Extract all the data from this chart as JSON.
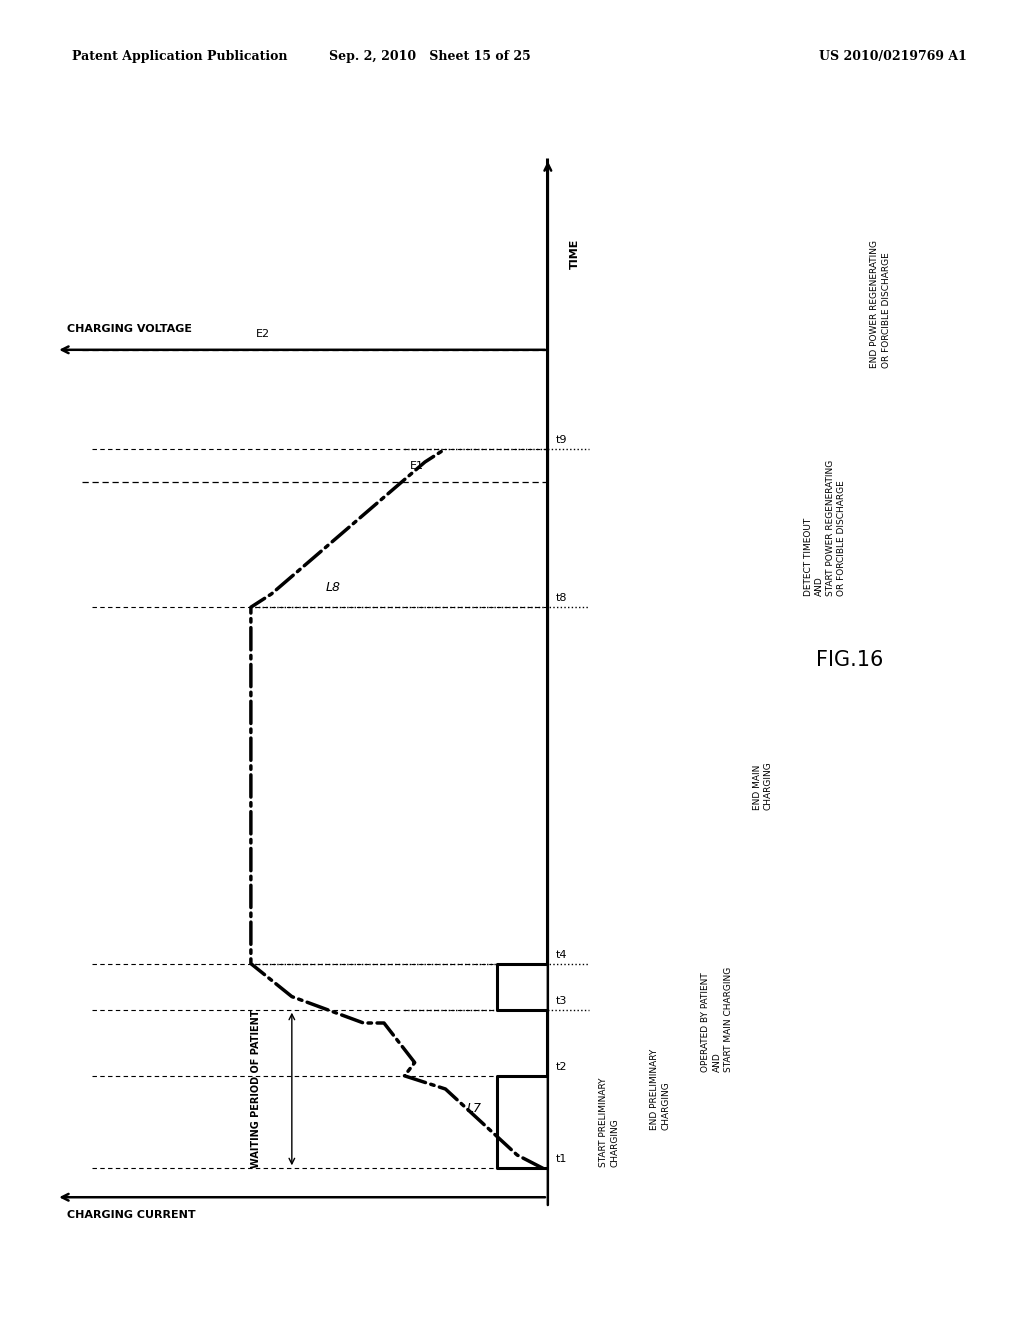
{
  "bg_color": "#ffffff",
  "header_left": "Patent Application Publication",
  "header_mid": "Sep. 2, 2010   Sheet 15 of 25",
  "header_right": "US 2010/0219769 A1",
  "fig_label": "FIG.16",
  "waiting_label": "WAITING PERIOD OF PATIENT",
  "charging_voltage_label": "CHARGING VOLTAGE",
  "charging_current_label": "CHARGING CURRENT",
  "time_axis_label": "TIME",
  "L7_label": "L7",
  "L8_label": "L8",
  "E1_label": "E1",
  "E2_label": "E2",
  "time_points": [
    "t1",
    "t2",
    "t3",
    "t4",
    "t8",
    "t9"
  ],
  "annot_t1": "START PRELIMINARY\nCHARGING",
  "annot_t2": "END PRELIMINARY\nCHARGING",
  "annot_t3": "OPERATED BY PATIENT\nAND\nSTART MAIN CHARGING",
  "annot_t4": "END MAIN\nCHARGING",
  "annot_t8": "DETECT TIMEOUT\nAND\nSTART POWER REGENERATING\nOR FORCIBLE DISCHARGE",
  "annot_t9": "END POWER REGENERATING\nOR FORCIBLE DISCHARGE"
}
